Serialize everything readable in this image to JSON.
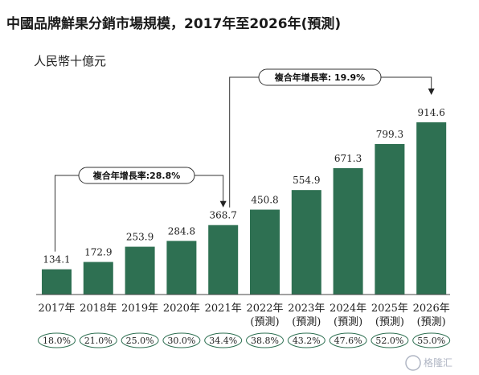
{
  "title": "中國品牌鮮果分銷市場規模，2017年至2026年(預測)",
  "unit": "人民幣十億元",
  "chart_data": {
    "type": "bar",
    "categories": [
      "2017年",
      "2018年",
      "2019年",
      "2020年",
      "2021年",
      "2022年",
      "2023年",
      "2024年",
      "2025年",
      "2026年"
    ],
    "category_sublabels": [
      "",
      "",
      "",
      "",
      "",
      "(預測)",
      "(預測)",
      "(預測)",
      "(預測)",
      "(預測)"
    ],
    "values": [
      134.1,
      172.9,
      253.9,
      284.8,
      368.7,
      450.8,
      554.9,
      671.3,
      799.3,
      914.6
    ],
    "value_labels": [
      "134.1",
      "172.9",
      "253.9",
      "284.8",
      "368.7",
      "450.8",
      "554.9",
      "671.3",
      "799.3",
      "914.6"
    ],
    "percent_labels": [
      "18.0%",
      "21.0%",
      "25.0%",
      "30.0%",
      "34.4%",
      "38.8%",
      "43.2%",
      "47.6%",
      "52.0%",
      "55.0%"
    ],
    "ylim": [
      0,
      914.6
    ],
    "annotations": [
      {
        "label": "複合年增長率:28.8%",
        "from_index": 0,
        "to_index": 4
      },
      {
        "label": "複合年增長率: 19.9%",
        "from_index": 4,
        "to_index": 9
      }
    ],
    "bar_color": "#2e7052"
  },
  "watermark": "格隆汇"
}
